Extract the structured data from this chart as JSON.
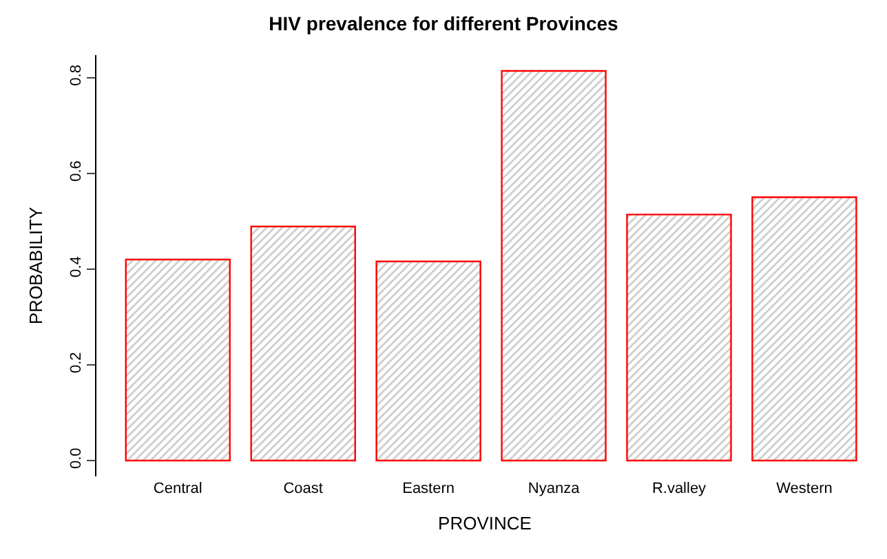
{
  "chart_data": {
    "type": "bar",
    "title": "HIV prevalence for different Provinces",
    "xlabel": "PROVINCE",
    "ylabel": "PROBABILITY",
    "categories": [
      "Central",
      "Coast",
      "Eastern",
      "Nyanza",
      "R.valley",
      "Western"
    ],
    "values": [
      0.42,
      0.489,
      0.416,
      0.814,
      0.514,
      0.55
    ],
    "color": "#ff0000",
    "ylim": [
      -0.033,
      0.847
    ],
    "yticks": [
      {
        "value": 0,
        "label": "0.0"
      },
      0.2,
      0.4,
      0.6,
      0.8
    ]
  }
}
